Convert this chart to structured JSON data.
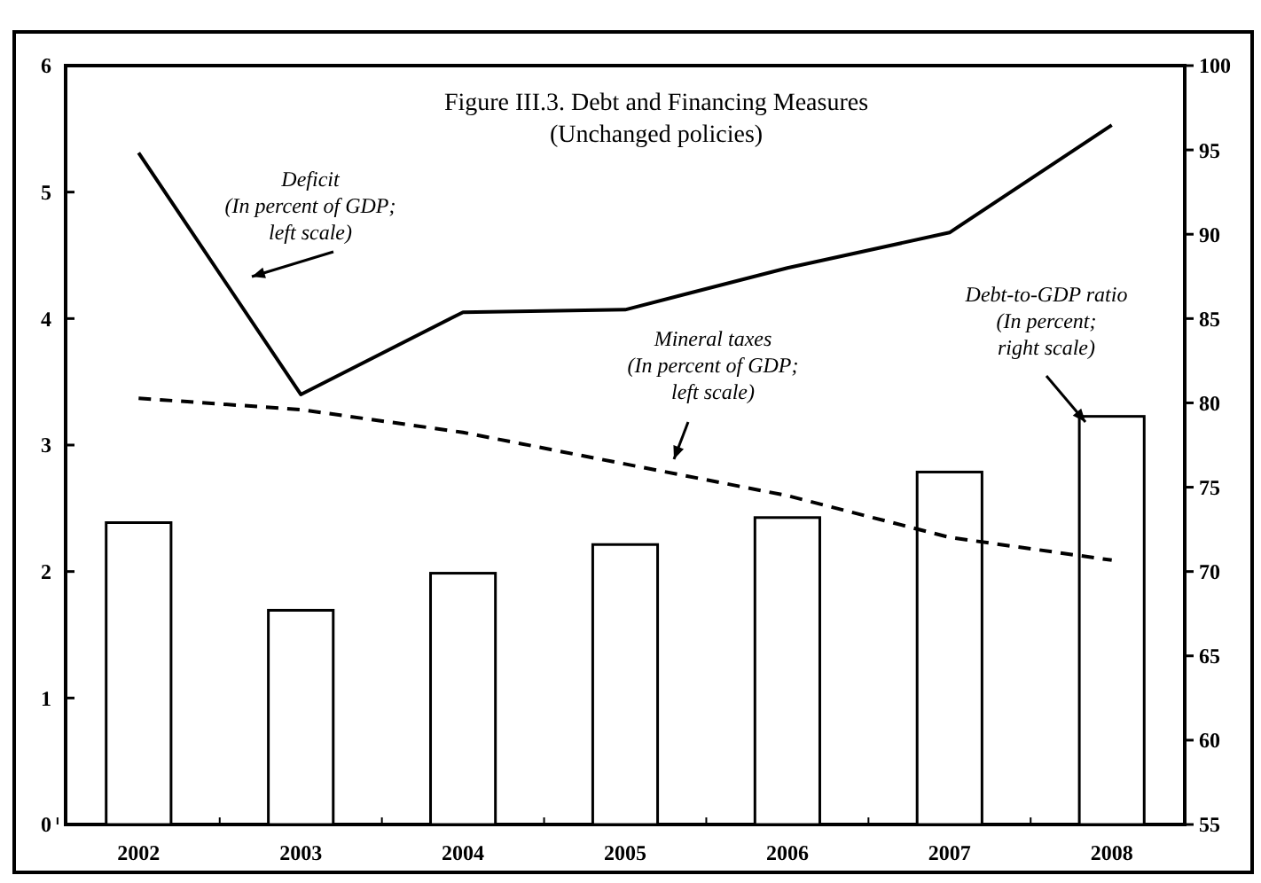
{
  "chart_data": {
    "type": "bar",
    "title": "Figure III.3. Debt and Financing Measures",
    "subtitle": "(Unchanged policies)",
    "categories": [
      "2002",
      "2003",
      "2004",
      "2005",
      "2006",
      "2007",
      "2008"
    ],
    "series": [
      {
        "axis": "y2",
        "color": "#ffffff",
        "values": [
          72.9,
          67.7,
          69.9,
          71.6,
          73.2,
          75.9,
          79.2
        ]
      },
      {
        "type": "line",
        "axis": "y",
        "color": "#000000",
        "line_style": "solid",
        "values": [
          5.31,
          3.4,
          4.05,
          4.07,
          4.4,
          4.68,
          5.53
        ]
      },
      {
        "type": "line",
        "axis": "y",
        "color": "#000000",
        "line_style": "dashed",
        "values": [
          3.37,
          3.28,
          3.1,
          2.85,
          2.6,
          2.27,
          2.09
        ]
      }
    ],
    "ylim": [
      0,
      6
    ],
    "yticks": [
      0,
      1,
      2,
      3,
      4,
      5,
      6
    ],
    "y2lim": [
      55,
      100
    ],
    "y2ticks": [
      55,
      60,
      65,
      70,
      75,
      80,
      85,
      90,
      95,
      100
    ],
    "grid": false,
    "marker": "none",
    "annotations": [
      "Deficit\n(In percent of GDP;\nleft scale)",
      "Mineral taxes\n(In percent of GDP;\nleft scale)",
      "Debt-to-GDP ratio\n(In percent;\nright scale)"
    ]
  }
}
